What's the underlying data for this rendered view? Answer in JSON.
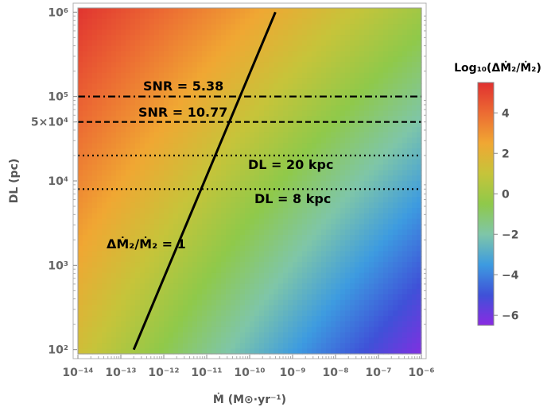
{
  "chart_data": {
    "type": "heatmap",
    "xlabel": "Ṁ (M⊙·yr⁻¹)",
    "ylabel": "DL (pc)",
    "x_scale": "log",
    "y_scale": "log",
    "xlim_log10": [
      -14,
      -6
    ],
    "ylim_log10": [
      1.95,
      6.05
    ],
    "x_ticks": [
      {
        "log": -14,
        "label": "10⁻¹⁴"
      },
      {
        "log": -13,
        "label": "10⁻¹³"
      },
      {
        "log": -12,
        "label": "10⁻¹²"
      },
      {
        "log": -11,
        "label": "10⁻¹¹"
      },
      {
        "log": -10,
        "label": "10⁻¹⁰"
      },
      {
        "log": -9,
        "label": "10⁻⁹"
      },
      {
        "log": -8,
        "label": "10⁻⁸"
      },
      {
        "log": -7,
        "label": "10⁻⁷"
      },
      {
        "log": -6,
        "label": "10⁻⁶"
      }
    ],
    "y_ticks": [
      {
        "value": 100,
        "label": "10²"
      },
      {
        "value": 1000,
        "label": "10³"
      },
      {
        "value": 10000,
        "label": "10⁴"
      },
      {
        "value": 50000,
        "label": "5×10⁴"
      },
      {
        "value": 100000,
        "label": "10⁵"
      },
      {
        "value": 1000000,
        "label": "10⁶"
      }
    ],
    "colorbar": {
      "title": "Log₁₀(ΔṀ₂/Ṁ₂)",
      "range": [
        -6.5,
        5.5
      ],
      "ticks": [
        {
          "value": 4,
          "label": "4"
        },
        {
          "value": 2,
          "label": "2"
        },
        {
          "value": 0,
          "label": "0"
        },
        {
          "value": -2,
          "label": "−2"
        },
        {
          "value": -4,
          "label": "−4"
        },
        {
          "value": -6,
          "label": "−6"
        }
      ],
      "gradient": [
        "#8a2be2",
        "#3f51d8",
        "#3d9be0",
        "#7fc6a8",
        "#8fc94a",
        "#c6c43a",
        "#f0a733",
        "#ec6b33",
        "#e03030"
      ]
    },
    "field_corner_values": {
      "top_left": 5.4,
      "top_right": 0.0,
      "bottom_left": 1.3,
      "bottom_right": -6.3
    },
    "threshold_line": {
      "label": "ΔṀ₂/Ṁ₂ = 1",
      "points": [
        {
          "x_log10": -12.7,
          "y": 100
        },
        {
          "x_log10": -9.4,
          "y": 1000000
        }
      ]
    },
    "horizontal_lines": [
      {
        "label": "SNR = 5.38",
        "y": 100000,
        "style": "dashdot"
      },
      {
        "label": "SNR = 10.77",
        "y": 50000,
        "style": "dashed"
      },
      {
        "label": "DL = 20 kpc",
        "y": 20000,
        "style": "dotted"
      },
      {
        "label": "DL = 8 kpc",
        "y": 8000,
        "style": "dotted"
      }
    ]
  }
}
